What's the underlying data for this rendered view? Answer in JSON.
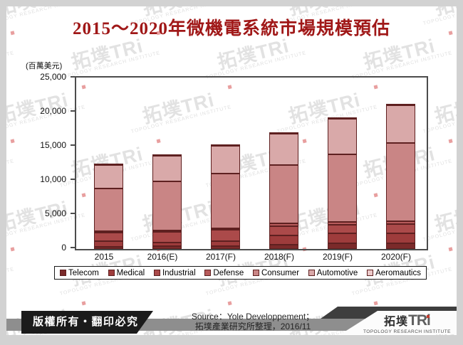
{
  "title": "2015～2020年微機電系統市場規模預估",
  "chart_data": {
    "type": "bar",
    "stacked": true,
    "title": "2015～2020年微機電系統市場規模預估",
    "unit_label": "(百萬美元)",
    "categories": [
      "2015",
      "2016(E)",
      "2017(F)",
      "2018(F)",
      "2019(F)",
      "2020(F)"
    ],
    "series": [
      {
        "name": "Telecom",
        "color": "#7b2a2a",
        "values": [
          350,
          400,
          450,
          650,
          800,
          850
        ]
      },
      {
        "name": "Medical",
        "color": "#9e3c3c",
        "values": [
          800,
          500,
          750,
          1350,
          1450,
          1400
        ]
      },
      {
        "name": "Industrial",
        "color": "#ab4a4a",
        "values": [
          1250,
          1650,
          1600,
          1350,
          1300,
          1350
        ]
      },
      {
        "name": "Defense",
        "color": "#b75b5b",
        "values": [
          200,
          200,
          200,
          400,
          400,
          450
        ]
      },
      {
        "name": "Consumer",
        "color": "#c98585",
        "values": [
          6300,
          7150,
          8050,
          8550,
          9950,
          11450
        ]
      },
      {
        "name": "Automotive",
        "color": "#d9a9a9",
        "values": [
          3400,
          3700,
          4000,
          4600,
          5200,
          5500
        ]
      },
      {
        "name": "Aeromautics",
        "color": "#eccaca",
        "values": [
          200,
          200,
          200,
          200,
          200,
          200
        ]
      }
    ],
    "totals_estimated": [
      12500,
      13800,
      15250,
      17100,
      19300,
      21200
    ],
    "ylim": [
      0,
      25000
    ],
    "yticks": [
      "0",
      "5,000",
      "10,000",
      "15,000",
      "20,000",
      "25,000"
    ],
    "grid": false,
    "legend_position": "bottom",
    "segment_border_color": "#5e2020"
  },
  "footer": {
    "copyright": "版權所有‧翻印必究",
    "source_line1": "Source：Yole Developpement；",
    "source_line2": "拓墣產業研究所整理，2016/11",
    "logo": {
      "zh": "拓墣",
      "en": "TRi",
      "sub": "TOPOLOGY RESEARCH INSTITUTE"
    }
  },
  "watermark": {
    "zh": "拓墣",
    "en": "TRi",
    "sub": "TOPOLOGY RESEARCH INSTITUTE"
  }
}
